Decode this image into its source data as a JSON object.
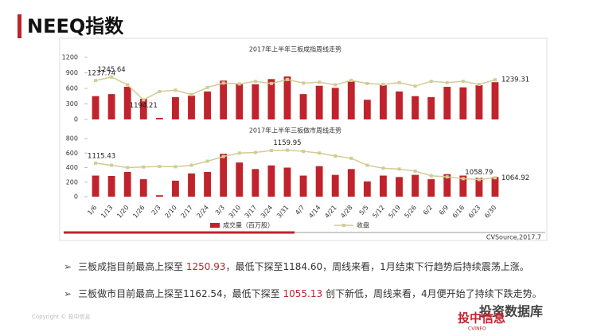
{
  "slide": {
    "title": "NEEQ指数",
    "source": "CVSource,2017.7",
    "bullets": [
      [
        "三板成指目前最高上探至 ",
        "1250.93",
        "，最低下探至1184.60，周线来看，1月结束下行趋势后持续震荡上涨。"
      ],
      [
        "三板做市目前最高上探至1162.54，最低下探至 ",
        "1055.13",
        " 创下新低，周线来看，4月便开始了持续下跌走势。"
      ]
    ],
    "watermark": "投资数据库",
    "logo": "投中信息",
    "logo_sub": "CVINFO",
    "copyright": "Copyright © 投中信息"
  },
  "chart_data": [
    {
      "type": "bar",
      "title": "2017年上半年三板成指周线走势",
      "ylim": [
        0,
        1200
      ],
      "yticks": [
        0,
        300,
        600,
        900,
        1200
      ],
      "y2lim": [
        1150,
        1290
      ],
      "series": [
        {
          "name": "成交量（百万股）",
          "color": "#c0232b",
          "values": [
            450,
            490,
            630,
            400,
            30,
            430,
            460,
            540,
            750,
            680,
            680,
            780,
            830,
            490,
            650,
            610,
            740,
            380,
            660,
            540,
            450,
            430,
            630,
            620,
            660,
            720
          ]
        },
        {
          "name": "收盘",
          "type": "line",
          "axis": "y2",
          "color": "#d2cc95",
          "labels_at": [
            0,
            1,
            3,
            25
          ],
          "values": [
            1237.74,
            1245.64,
            1228,
            1194.21,
            1213,
            1216,
            1206,
            1222,
            1232,
            1230,
            1236,
            1231,
            1240,
            1232,
            1234,
            1228,
            1238,
            1231,
            1229,
            1233,
            1225,
            1236,
            1233,
            1236,
            1229,
            1239.31
          ]
        }
      ]
    },
    {
      "type": "bar",
      "title": "2017年上半年三板做市周线走势",
      "categories": [
        "1/6",
        "1/13",
        "1/20",
        "1/26",
        "2/3",
        "2/10",
        "2/17",
        "2/24",
        "3/3",
        "3/10",
        "3/17",
        "3/24",
        "3/31",
        "4/7",
        "4/14",
        "4/21",
        "4/28",
        "5/5",
        "5/12",
        "5/19",
        "5/26",
        "6/2",
        "6/9",
        "6/16",
        "6/23",
        "6/30"
      ],
      "ylim": [
        0,
        800
      ],
      "yticks": [
        0,
        200,
        400,
        600,
        800
      ],
      "y2lim": [
        1000,
        1200
      ],
      "series": [
        {
          "color": "#c0232b",
          "values": [
            290,
            285,
            340,
            240,
            20,
            220,
            320,
            340,
            590,
            470,
            380,
            430,
            400,
            290,
            420,
            300,
            380,
            210,
            290,
            270,
            300,
            240,
            310,
            290,
            260,
            270
          ]
        },
        {
          "type": "line",
          "axis": "y2",
          "color": "#d2cc95",
          "labels_at": [
            0,
            12,
            24,
            25
          ],
          "values": [
            1115.43,
            1108,
            1100,
            1102,
            1104,
            1103,
            1108,
            1122,
            1138,
            1150,
            1152,
            1159,
            1159.95,
            1156,
            1150,
            1140,
            1132,
            1108,
            1098,
            1095,
            1088,
            1072,
            1068,
            1062,
            1058.79,
            1064.92
          ]
        }
      ]
    }
  ]
}
